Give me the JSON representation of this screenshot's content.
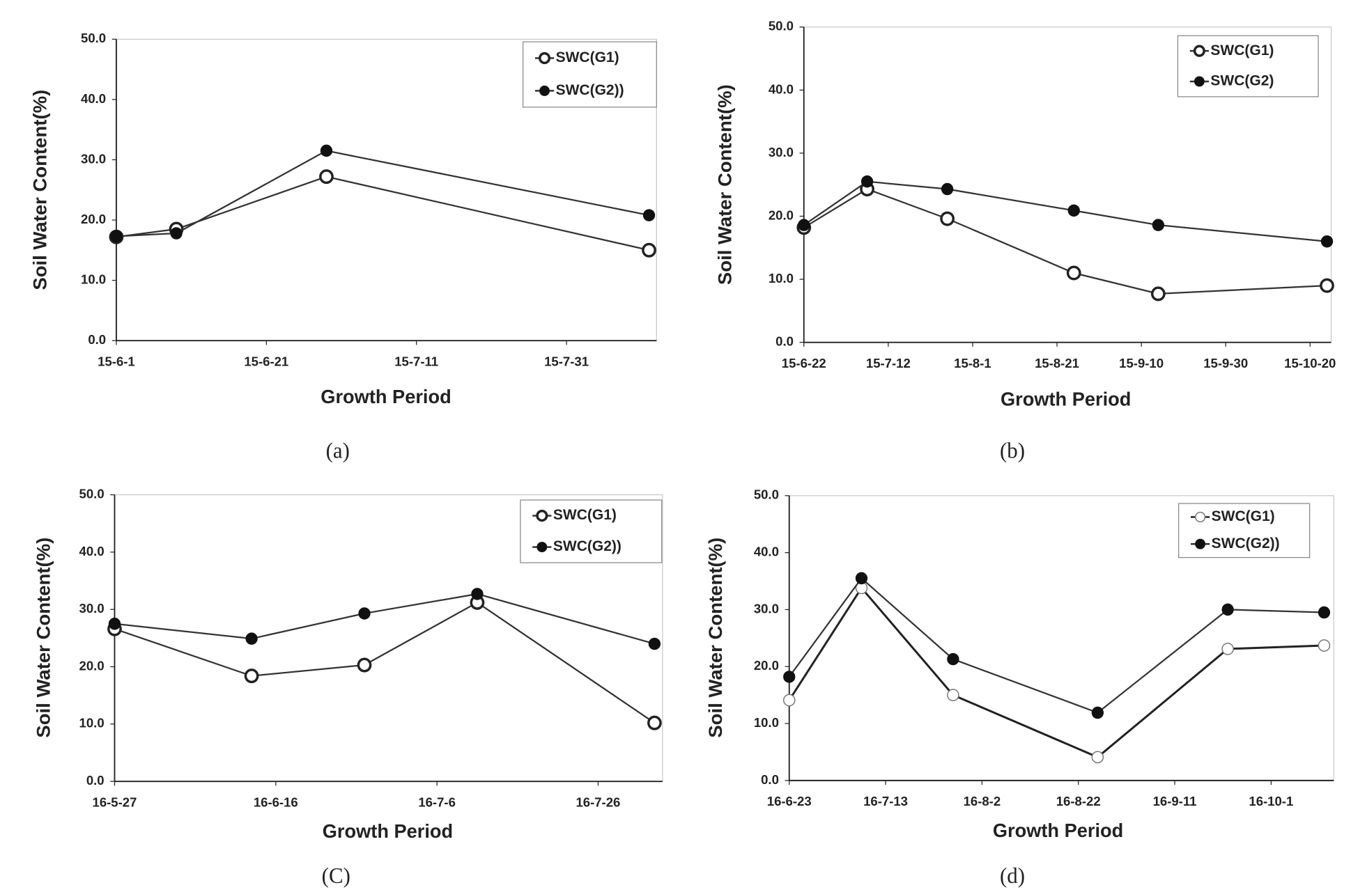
{
  "chart_data": [
    {
      "type": "line",
      "caption": "(a)",
      "x_label": "Growth Period",
      "y_label": "Soil Water Content(%)",
      "x": [
        "15-6-1",
        "15-6-9",
        "15-6-29",
        "15-8-11"
      ],
      "series": [
        {
          "name": "SWC(G1)",
          "color": "#333333",
          "marker": "open",
          "values": [
            17.2,
            18.5,
            27.2,
            15.0
          ]
        },
        {
          "name": "SWC(G2))",
          "color": "#333333",
          "marker": "filled",
          "values": [
            17.3,
            17.8,
            31.5,
            20.8
          ]
        }
      ],
      "xlim": [
        "15-6-1",
        "15-8-12"
      ],
      "xticks": [
        "15-6-1",
        "15-6-21",
        "15-7-11",
        "15-7-31"
      ],
      "ylim": [
        0,
        50
      ],
      "yticks": [
        {
          "value": 0,
          "label": "0.0"
        },
        {
          "value": 10,
          "label": "10.0"
        },
        {
          "value": 20,
          "label": "20.0"
        },
        {
          "value": 30,
          "label": "30.0"
        },
        {
          "value": 40,
          "label": "40.0"
        },
        {
          "value": 50,
          "label": "50.0"
        }
      ],
      "legend": "upper right"
    },
    {
      "type": "line",
      "caption": "(b)",
      "x_label": "Growth Period",
      "y_label": "Soil Water Content(%)",
      "x": [
        "15-6-22",
        "15-7-7",
        "15-7-26",
        "15-8-25",
        "15-9-14",
        "15-10-24"
      ],
      "series": [
        {
          "name": "SWC(G1)",
          "color": "#333333",
          "marker": "open",
          "values": [
            18.2,
            24.3,
            19.6,
            11.0,
            7.7,
            9.0
          ]
        },
        {
          "name": "SWC(G2)",
          "color": "#333333",
          "marker": "filled",
          "values": [
            18.6,
            25.5,
            24.3,
            20.9,
            18.6,
            16.0
          ]
        }
      ],
      "xlim": [
        "15-6-22",
        "15-10-25"
      ],
      "xticks": [
        "15-6-22",
        "15-7-12",
        "15-8-1",
        "15-8-21",
        "15-9-10",
        "15-9-30",
        "15-10-20"
      ],
      "ylim": [
        0,
        50
      ],
      "yticks": [
        {
          "value": 0,
          "label": "0.0"
        },
        {
          "value": 10,
          "label": "10.0"
        },
        {
          "value": 20,
          "label": "20.0"
        },
        {
          "value": 30,
          "label": "30.0"
        },
        {
          "value": 40,
          "label": "40.0"
        },
        {
          "value": 50,
          "label": "50.0"
        }
      ],
      "legend": "upper right"
    },
    {
      "type": "line",
      "caption": "(C)",
      "x_label": "Growth Period",
      "y_label": "Soil Water Content(%)",
      "x": [
        "16-5-27",
        "16-6-13",
        "16-6-27",
        "16-7-11",
        "16-8-2"
      ],
      "series": [
        {
          "name": "SWC(G1)",
          "color": "#333333",
          "marker": "open",
          "values": [
            26.6,
            18.4,
            20.3,
            31.2,
            10.2
          ]
        },
        {
          "name": "SWC(G2))",
          "color": "#333333",
          "marker": "filled",
          "values": [
            27.5,
            24.9,
            29.3,
            32.7,
            24.0
          ]
        }
      ],
      "xlim": [
        "16-5-27",
        "16-8-3"
      ],
      "xticks": [
        "16-5-27",
        "16-6-16",
        "16-7-6",
        "16-7-26"
      ],
      "ylim": [
        0,
        50
      ],
      "yticks": [
        {
          "value": 0,
          "label": "0.0"
        },
        {
          "value": 10,
          "label": "10.0"
        },
        {
          "value": 20,
          "label": "20.0"
        },
        {
          "value": 30,
          "label": "30.0"
        },
        {
          "value": 40,
          "label": "40.0"
        },
        {
          "value": 50,
          "label": "50.0"
        }
      ],
      "legend": "upper right"
    },
    {
      "type": "line",
      "caption": "(d)",
      "x_label": "Growth Period",
      "y_label": "Soil Water Content(%)",
      "x": [
        "16-6-23",
        "16-7-8",
        "16-7-27",
        "16-8-26",
        "16-9-22",
        "16-10-12"
      ],
      "series": [
        {
          "name": "SWC(G1)",
          "color": "#222222",
          "marker": "hollow",
          "values": [
            14.1,
            33.8,
            15.0,
            4.1,
            23.1,
            23.7
          ]
        },
        {
          "name": "SWC(G2))",
          "color": "#333333",
          "marker": "filled",
          "values": [
            18.2,
            35.5,
            21.3,
            11.9,
            30.0,
            29.5
          ]
        }
      ],
      "xlim": [
        "16-6-23",
        "16-10-14"
      ],
      "xticks": [
        "16-6-23",
        "16-7-13",
        "16-8-2",
        "16-8-22",
        "16-9-11",
        "16-10-1"
      ],
      "ylim": [
        0,
        50
      ],
      "yticks": [
        {
          "value": 0,
          "label": "0.0"
        },
        {
          "value": 10,
          "label": "10.0"
        },
        {
          "value": 20,
          "label": "20.0"
        },
        {
          "value": 30,
          "label": "30.0"
        },
        {
          "value": 40,
          "label": "40.0"
        },
        {
          "value": 50,
          "label": "50.0"
        }
      ],
      "legend": "upper right"
    }
  ]
}
